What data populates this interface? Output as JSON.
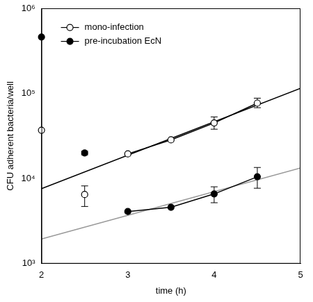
{
  "chart_data": {
    "type": "scatter",
    "x_label": "time (h)",
    "y_label": "CFU adherent bacteria/well",
    "x": [
      2,
      2.5,
      3,
      3.5,
      4,
      4.5
    ],
    "series": [
      {
        "name": "mono-infection",
        "color": "#000000",
        "marker": "open circle",
        "values": [
          37000,
          6500,
          19500,
          28500,
          45000,
          77000
        ],
        "error_bars": [
          null,
          [
            4700,
            8200
          ],
          null,
          null,
          [
            38000,
            53000
          ],
          [
            68000,
            88000
          ]
        ]
      },
      {
        "name": "pre-incubation EcN",
        "color": "#000000",
        "marker": "filled circle",
        "values": [
          460000,
          20000,
          4100,
          4600,
          6600,
          10500
        ],
        "error_bars": [
          null,
          [
            19000,
            21000
          ],
          null,
          null,
          [
            5200,
            8000
          ],
          [
            7700,
            13500
          ]
        ]
      }
    ],
    "lines": [
      {
        "color": "#000000",
        "line_style": "solid",
        "x": [
          3,
          3.5,
          4,
          4.5
        ],
        "values": [
          19500,
          28500,
          45000,
          77000
        ]
      },
      {
        "color": "#000000",
        "line_style": "solid",
        "x": [
          3,
          3.5,
          4,
          4.5
        ],
        "values": [
          4100,
          4600,
          6600,
          10500
        ]
      },
      {
        "color": "#000000",
        "line_style": "solid",
        "x": [
          2,
          5
        ],
        "values": [
          7600,
          115000
        ]
      },
      {
        "color": "#999999",
        "line_style": "solid",
        "x": [
          2,
          5
        ],
        "values": [
          1950,
          13300
        ]
      }
    ],
    "xlim": [
      2,
      5
    ],
    "xticks": [
      2,
      3,
      4,
      5
    ],
    "ylim": [
      1000,
      1000000
    ],
    "yticks": [
      {
        "value": 1000,
        "label": "10³"
      },
      {
        "value": 10000,
        "label": "10⁴"
      },
      {
        "value": 100000,
        "label": "10⁵"
      },
      {
        "value": 1000000,
        "label": "10⁶"
      }
    ],
    "log": "y",
    "grid": false,
    "legend": "upper left"
  }
}
